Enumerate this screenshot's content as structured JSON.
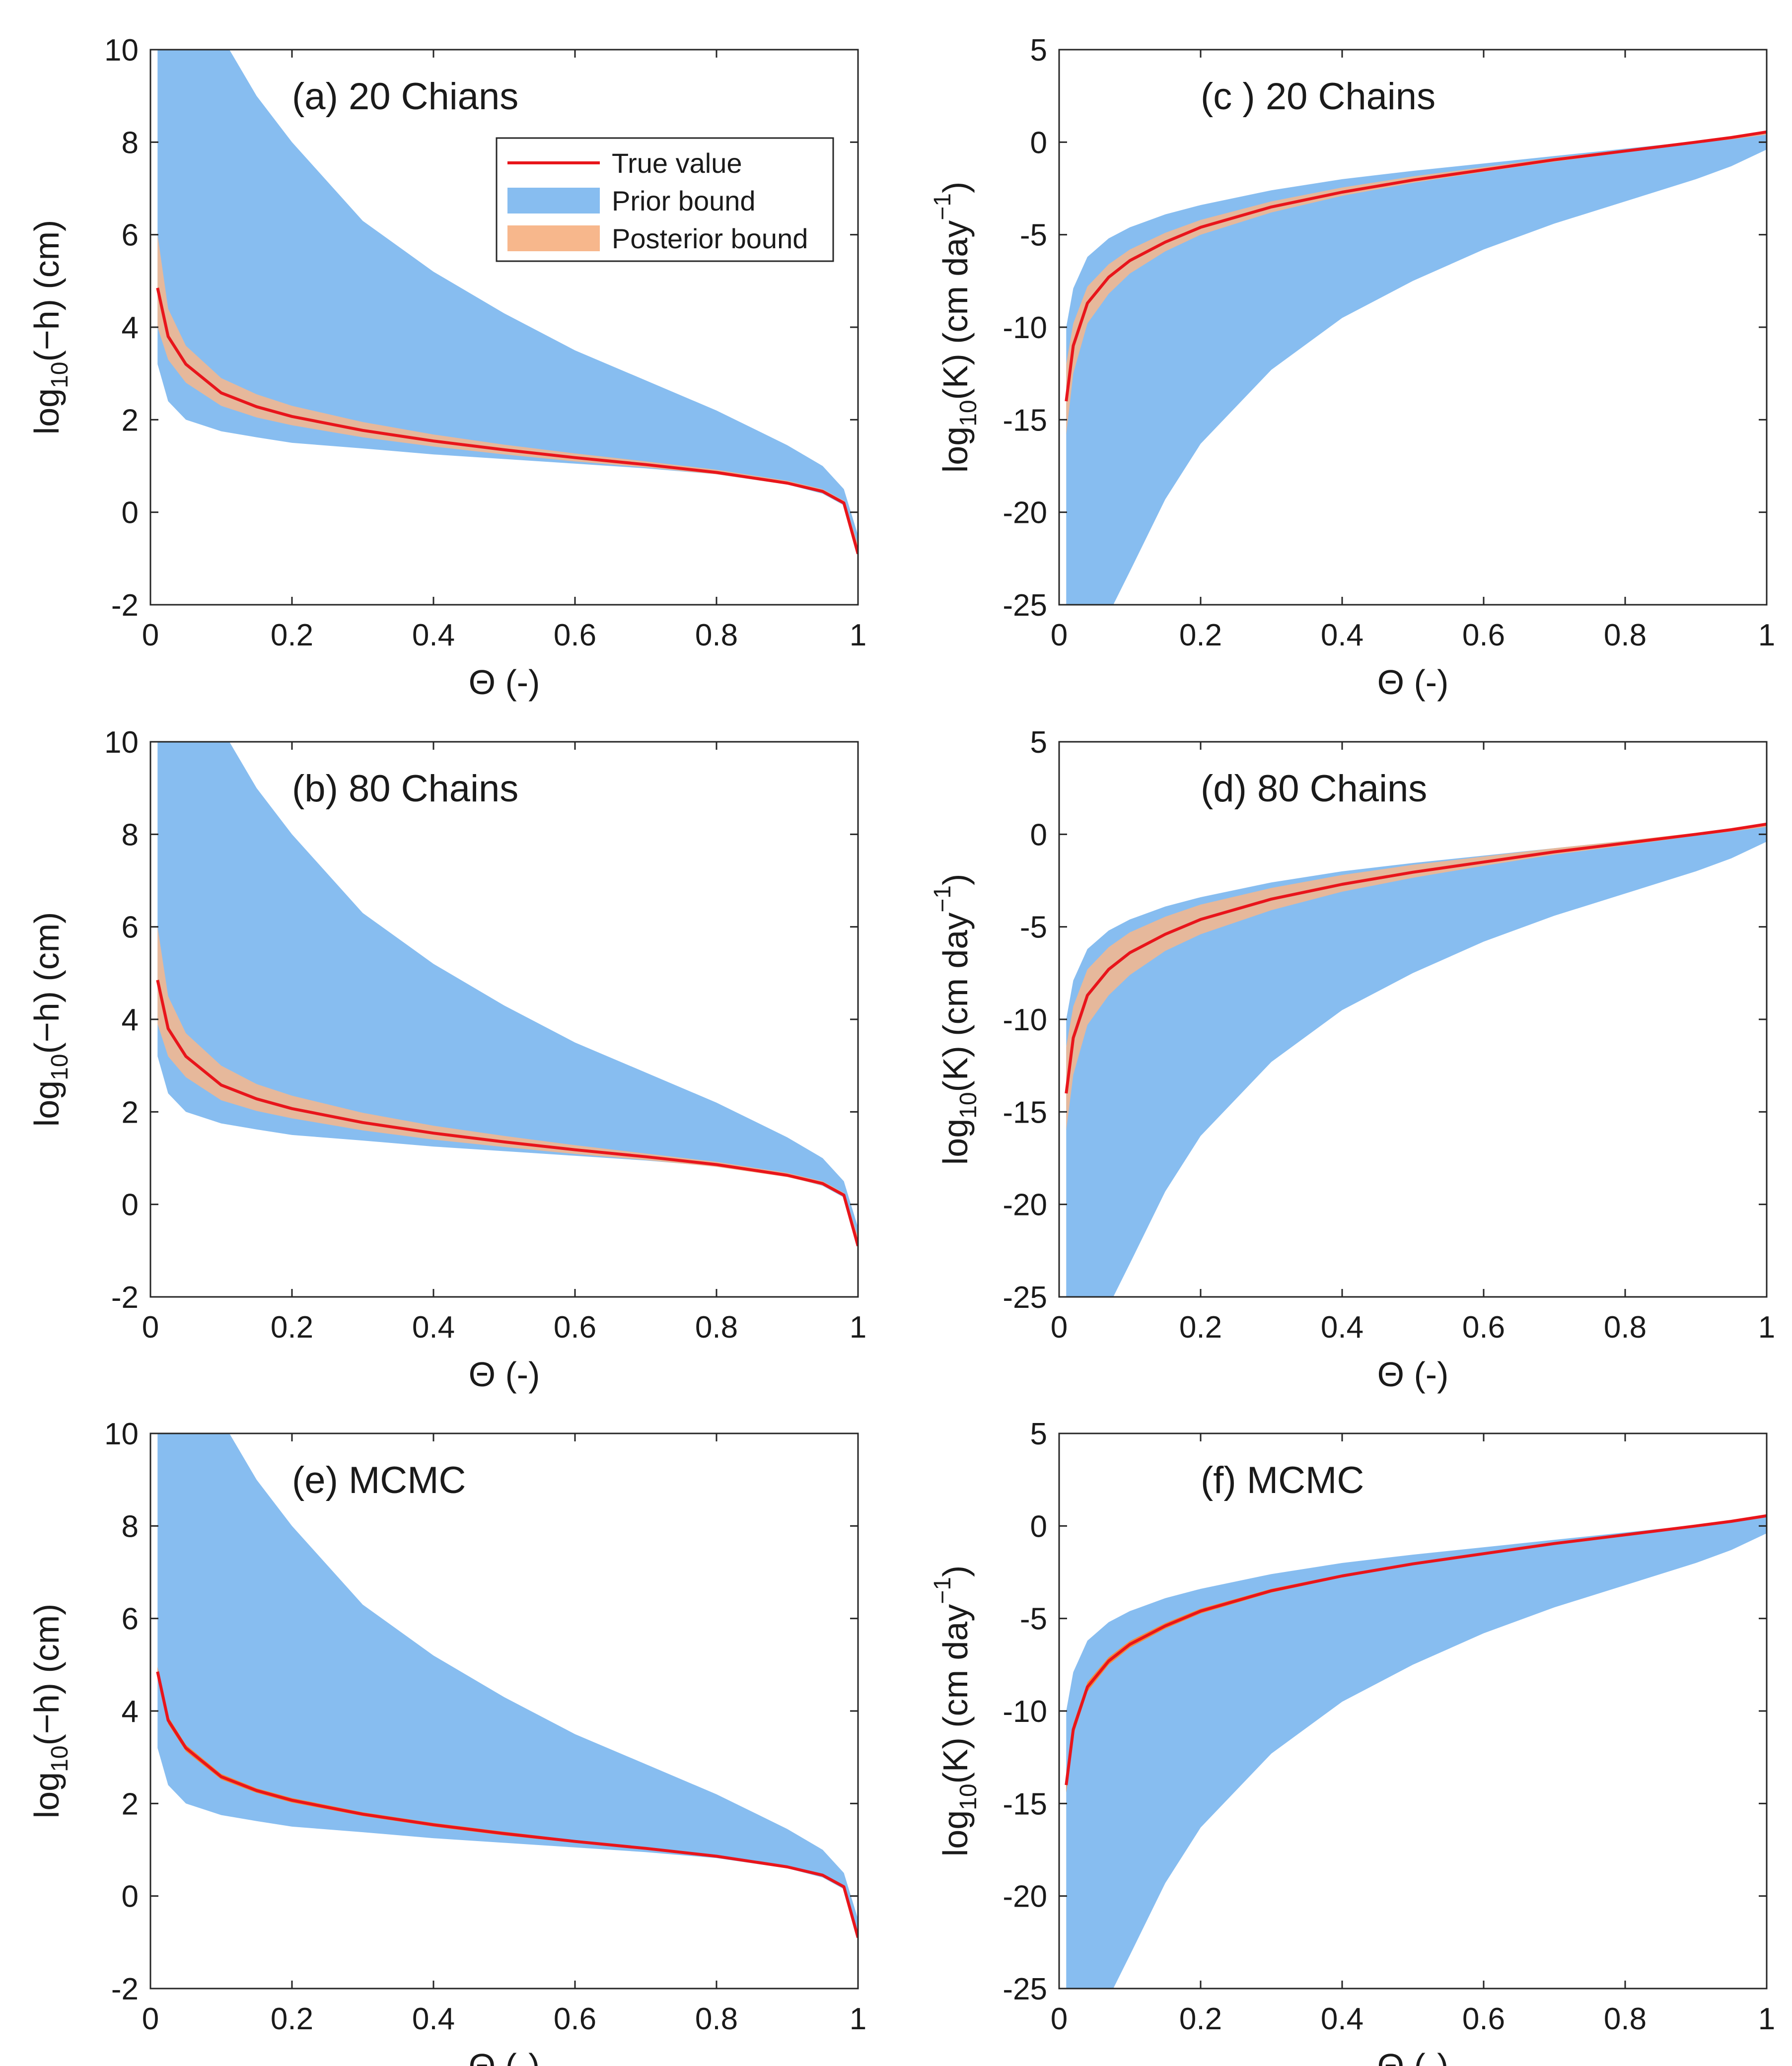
{
  "colors": {
    "prior": "#87bdf0",
    "posterior": "#f7b78c",
    "true_line": "#e8151b",
    "mcmc_posterior": "#f58a3c",
    "axis": "#262626"
  },
  "legend": {
    "true_value": "True value",
    "prior_bound": "Prior bound",
    "posterior_bound": "Posterior bound"
  },
  "chart_data": [
    {
      "id": "a",
      "type": "area",
      "title": "(a) 20 Chians",
      "xlabel": "Θ (-)",
      "ylabel_text": "log10(−h) (cm)",
      "ylabel_parts": [
        "log",
        "10",
        "(−h) (cm)"
      ],
      "xlim": [
        0,
        1
      ],
      "ylim": [
        -2,
        10
      ],
      "xticks": [
        "0",
        "0.2",
        "0.4",
        "0.6",
        "0.8",
        "1"
      ],
      "yticks": [
        "-2",
        "0",
        "2",
        "4",
        "6",
        "8",
        "10"
      ],
      "x": [
        0.01,
        0.025,
        0.05,
        0.1,
        0.15,
        0.2,
        0.3,
        0.4,
        0.5,
        0.6,
        0.7,
        0.8,
        0.9,
        0.95,
        0.98,
        1.0
      ],
      "prior_upper": [
        15,
        14,
        12,
        10.3,
        9.0,
        8.0,
        6.3,
        5.2,
        4.3,
        3.5,
        2.85,
        2.2,
        1.45,
        1.0,
        0.5,
        -0.5
      ],
      "prior_lower": [
        3.2,
        2.4,
        2.0,
        1.75,
        1.62,
        1.5,
        1.38,
        1.25,
        1.15,
        1.05,
        0.95,
        0.82,
        0.6,
        0.4,
        0.15,
        -0.9
      ],
      "posterior_upper": [
        6.0,
        4.4,
        3.6,
        2.9,
        2.55,
        2.3,
        1.95,
        1.68,
        1.46,
        1.27,
        1.1,
        0.92,
        0.68,
        0.5,
        0.25,
        -0.7
      ],
      "posterior_lower": [
        4.0,
        3.3,
        2.8,
        2.3,
        2.05,
        1.88,
        1.62,
        1.42,
        1.25,
        1.1,
        0.97,
        0.82,
        0.6,
        0.42,
        0.18,
        -0.95
      ],
      "true": [
        4.85,
        3.8,
        3.2,
        2.58,
        2.28,
        2.07,
        1.77,
        1.54,
        1.35,
        1.18,
        1.03,
        0.86,
        0.63,
        0.45,
        0.2,
        -0.9
      ]
    },
    {
      "id": "c",
      "type": "area",
      "title": "(c ) 20 Chains",
      "xlabel": "Θ (-)",
      "ylabel_text": "log10(K) (cm day^-1)",
      "ylabel_parts": [
        "log",
        "10",
        "(K) (cm day",
        "−1",
        ")"
      ],
      "xlim": [
        0,
        1
      ],
      "ylim": [
        -25,
        5
      ],
      "xticks": [
        "0",
        "0.2",
        "0.4",
        "0.6",
        "0.8",
        "1"
      ],
      "yticks": [
        "-25",
        "-20",
        "-15",
        "-10",
        "-5",
        "0",
        "5"
      ],
      "x": [
        0.01,
        0.02,
        0.04,
        0.07,
        0.1,
        0.15,
        0.2,
        0.3,
        0.4,
        0.5,
        0.6,
        0.7,
        0.8,
        0.9,
        0.95,
        1.0
      ],
      "prior_upper": [
        -10,
        -7.9,
        -6.2,
        -5.2,
        -4.6,
        -3.9,
        -3.4,
        -2.6,
        -2.0,
        -1.55,
        -1.15,
        -0.75,
        -0.35,
        0.05,
        0.25,
        0.5
      ],
      "prior_lower": [
        -25.5,
        -25.5,
        -25.5,
        -25.5,
        -23.2,
        -19.3,
        -16.3,
        -12.3,
        -9.5,
        -7.5,
        -5.8,
        -4.4,
        -3.2,
        -2.0,
        -1.3,
        -0.4
      ],
      "posterior_upper": [
        -12,
        -9.8,
        -7.8,
        -6.6,
        -5.8,
        -4.9,
        -4.2,
        -3.2,
        -2.45,
        -1.85,
        -1.35,
        -0.85,
        -0.4,
        0.05,
        0.3,
        0.6
      ],
      "posterior_lower": [
        -15.8,
        -12.5,
        -9.8,
        -8.2,
        -7.1,
        -5.9,
        -5.0,
        -3.8,
        -2.9,
        -2.2,
        -1.6,
        -1.05,
        -0.55,
        -0.05,
        0.15,
        0.4
      ],
      "true": [
        -14,
        -11.0,
        -8.7,
        -7.3,
        -6.4,
        -5.4,
        -4.6,
        -3.5,
        -2.7,
        -2.05,
        -1.5,
        -0.95,
        -0.48,
        0.0,
        0.25,
        0.55
      ]
    },
    {
      "id": "b",
      "type": "area",
      "title": "(b) 80 Chains",
      "xlabel": "Θ (-)",
      "ylabel_text": "log10(−h) (cm)",
      "ylabel_parts": [
        "log",
        "10",
        "(−h) (cm)"
      ],
      "xlim": [
        0,
        1
      ],
      "ylim": [
        -2,
        10
      ],
      "xticks": [
        "0",
        "0.2",
        "0.4",
        "0.6",
        "0.8",
        "1"
      ],
      "yticks": [
        "-2",
        "0",
        "2",
        "4",
        "6",
        "8",
        "10"
      ],
      "x": [
        0.01,
        0.025,
        0.05,
        0.1,
        0.15,
        0.2,
        0.3,
        0.4,
        0.5,
        0.6,
        0.7,
        0.8,
        0.9,
        0.95,
        0.98,
        1.0
      ],
      "prior_upper": [
        15,
        14,
        12,
        10.3,
        9.0,
        8.0,
        6.3,
        5.2,
        4.3,
        3.5,
        2.85,
        2.2,
        1.45,
        1.0,
        0.5,
        -0.5
      ],
      "prior_lower": [
        3.2,
        2.4,
        2.0,
        1.75,
        1.62,
        1.5,
        1.38,
        1.25,
        1.15,
        1.05,
        0.95,
        0.82,
        0.6,
        0.4,
        0.15,
        -0.9
      ],
      "posterior_upper": [
        6.0,
        4.5,
        3.7,
        3.0,
        2.6,
        2.35,
        1.98,
        1.7,
        1.48,
        1.28,
        1.1,
        0.92,
        0.68,
        0.5,
        0.25,
        -0.7
      ],
      "posterior_lower": [
        3.9,
        3.2,
        2.75,
        2.25,
        2.02,
        1.86,
        1.6,
        1.4,
        1.24,
        1.09,
        0.96,
        0.81,
        0.59,
        0.41,
        0.17,
        -0.95
      ],
      "true": [
        4.85,
        3.8,
        3.2,
        2.58,
        2.28,
        2.07,
        1.77,
        1.54,
        1.35,
        1.18,
        1.03,
        0.86,
        0.63,
        0.45,
        0.2,
        -0.9
      ]
    },
    {
      "id": "d",
      "type": "area",
      "title": "(d) 80 Chains",
      "xlabel": "Θ (-)",
      "ylabel_text": "log10(K) (cm day^-1)",
      "ylabel_parts": [
        "log",
        "10",
        "(K) (cm day",
        "−1",
        ")"
      ],
      "xlim": [
        0,
        1
      ],
      "ylim": [
        -25,
        5
      ],
      "xticks": [
        "0",
        "0.2",
        "0.4",
        "0.6",
        "0.8",
        "1"
      ],
      "yticks": [
        "-25",
        "-20",
        "-15",
        "-10",
        "-5",
        "0",
        "5"
      ],
      "x": [
        0.01,
        0.02,
        0.04,
        0.07,
        0.1,
        0.15,
        0.2,
        0.3,
        0.4,
        0.5,
        0.6,
        0.7,
        0.8,
        0.9,
        0.95,
        1.0
      ],
      "prior_upper": [
        -10,
        -7.9,
        -6.2,
        -5.2,
        -4.6,
        -3.9,
        -3.4,
        -2.6,
        -2.0,
        -1.55,
        -1.15,
        -0.75,
        -0.35,
        0.05,
        0.25,
        0.5
      ],
      "prior_lower": [
        -25.5,
        -25.5,
        -25.5,
        -25.5,
        -23.2,
        -19.3,
        -16.3,
        -12.3,
        -9.5,
        -7.5,
        -5.8,
        -4.4,
        -3.2,
        -2.0,
        -1.3,
        -0.4
      ],
      "posterior_upper": [
        -11.5,
        -9.3,
        -7.3,
        -6.1,
        -5.3,
        -4.45,
        -3.8,
        -2.9,
        -2.2,
        -1.65,
        -1.2,
        -0.75,
        -0.35,
        0.08,
        0.3,
        0.6
      ],
      "posterior_lower": [
        -16.0,
        -13.0,
        -10.3,
        -8.7,
        -7.6,
        -6.3,
        -5.4,
        -4.1,
        -3.1,
        -2.35,
        -1.7,
        -1.1,
        -0.6,
        -0.08,
        0.15,
        0.4
      ],
      "true": [
        -14,
        -11.0,
        -8.7,
        -7.3,
        -6.4,
        -5.4,
        -4.6,
        -3.5,
        -2.7,
        -2.05,
        -1.5,
        -0.95,
        -0.48,
        0.0,
        0.25,
        0.55
      ]
    },
    {
      "id": "e",
      "type": "area",
      "title": "(e) MCMC",
      "xlabel": "Θ (-)",
      "ylabel_text": "log10(−h) (cm)",
      "ylabel_parts": [
        "log",
        "10",
        "(−h) (cm)"
      ],
      "xlim": [
        0,
        1
      ],
      "ylim": [
        -2,
        10
      ],
      "xticks": [
        "0",
        "0.2",
        "0.4",
        "0.6",
        "0.8",
        "1"
      ],
      "yticks": [
        "-2",
        "0",
        "2",
        "4",
        "6",
        "8",
        "10"
      ],
      "x": [
        0.01,
        0.025,
        0.05,
        0.1,
        0.15,
        0.2,
        0.3,
        0.4,
        0.5,
        0.6,
        0.7,
        0.8,
        0.9,
        0.95,
        0.98,
        1.0
      ],
      "prior_upper": [
        15,
        14,
        12,
        10.3,
        9.0,
        8.0,
        6.3,
        5.2,
        4.3,
        3.5,
        2.85,
        2.2,
        1.45,
        1.0,
        0.5,
        -0.5
      ],
      "prior_lower": [
        3.2,
        2.4,
        2.0,
        1.75,
        1.62,
        1.5,
        1.38,
        1.25,
        1.15,
        1.05,
        0.95,
        0.82,
        0.6,
        0.4,
        0.15,
        -0.9
      ],
      "posterior_upper": [
        4.95,
        3.88,
        3.27,
        2.64,
        2.33,
        2.12,
        1.81,
        1.58,
        1.39,
        1.21,
        1.06,
        0.89,
        0.66,
        0.48,
        0.23,
        -0.86
      ],
      "posterior_lower": [
        4.75,
        3.72,
        3.13,
        2.52,
        2.23,
        2.02,
        1.73,
        1.5,
        1.31,
        1.15,
        1.0,
        0.83,
        0.6,
        0.42,
        0.17,
        -0.94
      ],
      "true": [
        4.85,
        3.8,
        3.2,
        2.58,
        2.28,
        2.07,
        1.77,
        1.54,
        1.35,
        1.18,
        1.03,
        0.86,
        0.63,
        0.45,
        0.2,
        -0.9
      ]
    },
    {
      "id": "f",
      "type": "area",
      "title": "(f) MCMC",
      "xlabel": "Θ (-)",
      "ylabel_text": "log10(K) (cm day^-1)",
      "ylabel_parts": [
        "log",
        "10",
        "(K) (cm day",
        "−1",
        ")"
      ],
      "xlim": [
        0,
        1
      ],
      "ylim": [
        -25,
        5
      ],
      "xticks": [
        "0",
        "0.2",
        "0.4",
        "0.6",
        "0.8",
        "1"
      ],
      "yticks": [
        "-25",
        "-20",
        "-15",
        "-10",
        "-5",
        "0",
        "5"
      ],
      "x": [
        0.01,
        0.02,
        0.04,
        0.07,
        0.1,
        0.15,
        0.2,
        0.3,
        0.4,
        0.5,
        0.6,
        0.7,
        0.8,
        0.9,
        0.95,
        1.0
      ],
      "prior_upper": [
        -10,
        -7.9,
        -6.2,
        -5.2,
        -4.6,
        -3.9,
        -3.4,
        -2.6,
        -2.0,
        -1.55,
        -1.15,
        -0.75,
        -0.35,
        0.05,
        0.25,
        0.5
      ],
      "prior_lower": [
        -25.5,
        -25.5,
        -25.5,
        -25.5,
        -23.2,
        -19.3,
        -16.3,
        -12.3,
        -9.5,
        -7.5,
        -5.8,
        -4.4,
        -3.2,
        -2.0,
        -1.3,
        -0.4
      ],
      "posterior_upper": [
        -13.6,
        -10.7,
        -8.45,
        -7.1,
        -6.22,
        -5.25,
        -4.47,
        -3.4,
        -2.62,
        -1.99,
        -1.45,
        -0.91,
        -0.44,
        0.04,
        0.29,
        0.6
      ],
      "posterior_lower": [
        -14.4,
        -11.3,
        -8.95,
        -7.5,
        -6.58,
        -5.55,
        -4.73,
        -3.6,
        -2.78,
        -2.11,
        -1.55,
        -0.99,
        -0.52,
        -0.04,
        0.21,
        0.5
      ],
      "true": [
        -14,
        -11.0,
        -8.7,
        -7.3,
        -6.4,
        -5.4,
        -4.6,
        -3.5,
        -2.7,
        -2.05,
        -1.5,
        -0.95,
        -0.48,
        0.0,
        0.25,
        0.55
      ]
    }
  ]
}
